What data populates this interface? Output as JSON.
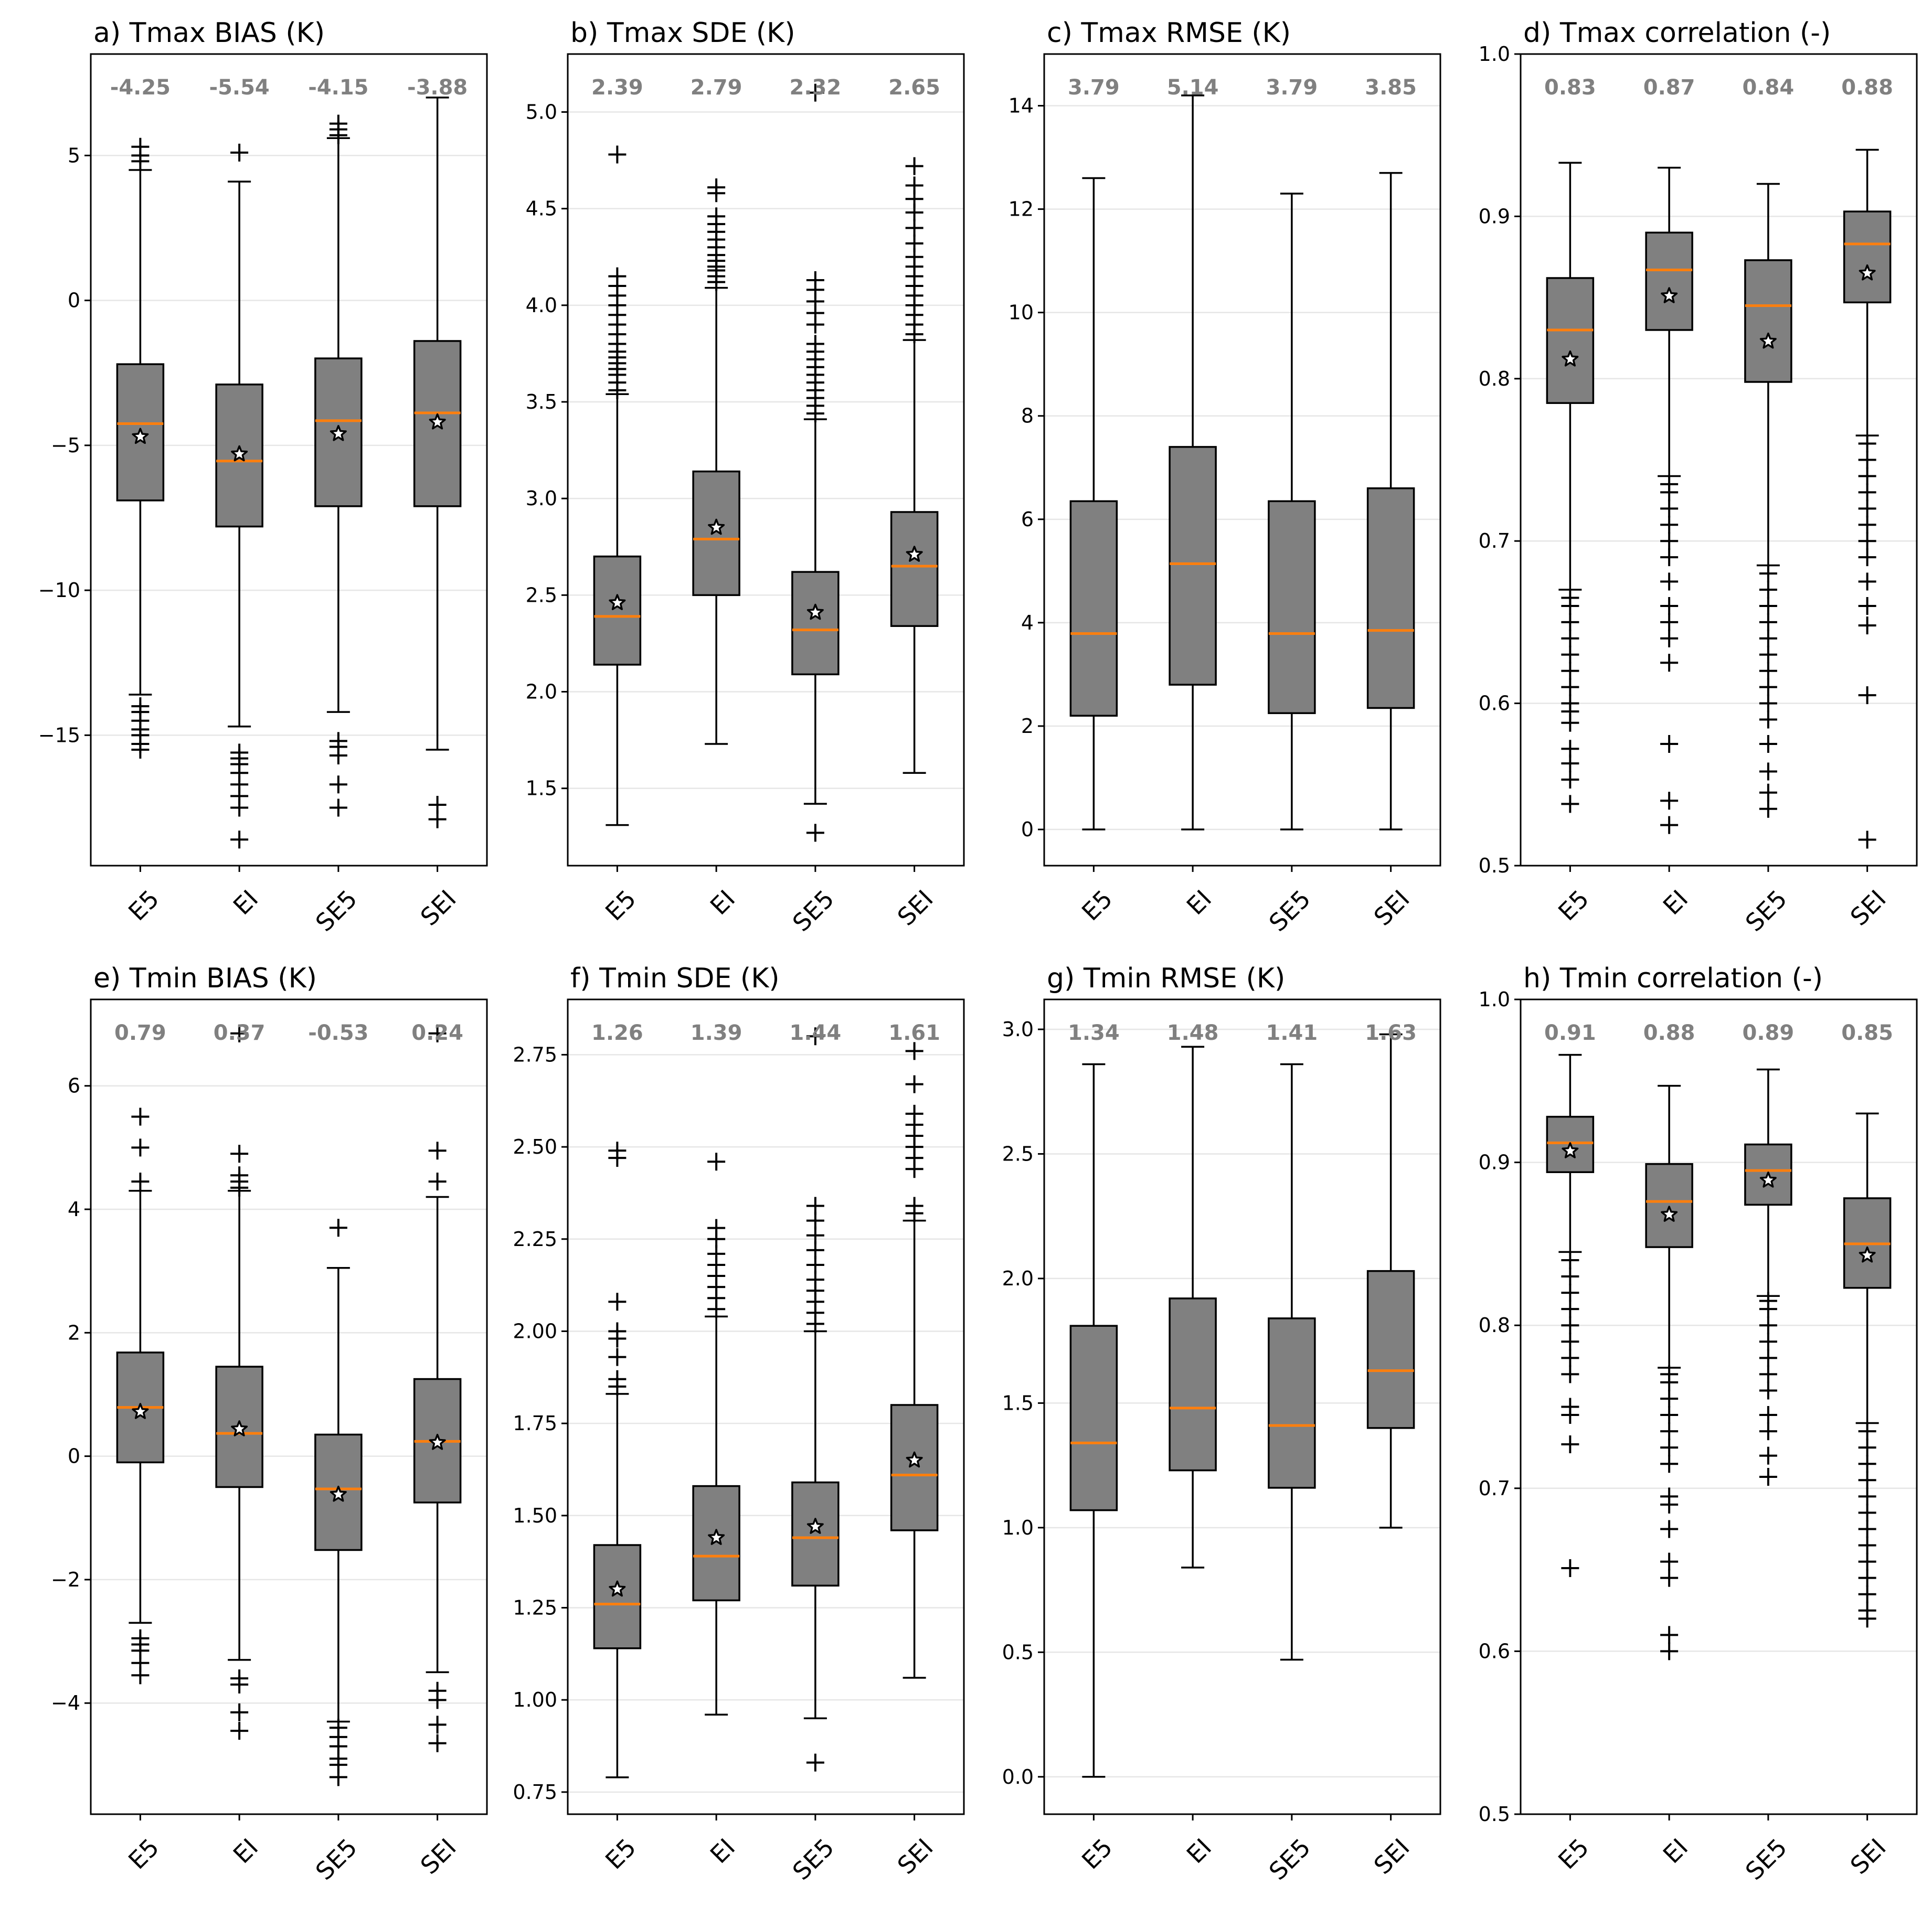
{
  "colors": {
    "box_fill": "#808080",
    "median_line": "#ff7f0e",
    "median_label": "#808080",
    "grid": "#e6e6e6",
    "axis": "#000000",
    "mean_marker_fill": "#ffffff"
  },
  "chart_data": [
    {
      "id": "a",
      "type": "boxplot",
      "title": "a) Tmax BIAS (K)",
      "categories": [
        "E5",
        "EI",
        "SE5",
        "SEI"
      ],
      "ylim": [
        -19.5,
        8.5
      ],
      "yticks": [
        -15,
        -10,
        -5,
        0,
        5
      ],
      "ytick_labels": [
        "−15",
        "−10",
        "−5",
        "0",
        "5"
      ],
      "median_labels": [
        "-4.25",
        "-5.54",
        "-4.15",
        "-3.88"
      ],
      "boxes": [
        {
          "q1": -6.9,
          "median": -4.25,
          "q3": -2.2,
          "whislo": -13.6,
          "whishi": 4.5,
          "mean": -4.7,
          "fliers": [
            -14.0,
            -14.2,
            -14.5,
            -14.8,
            -15.0,
            -15.3,
            -15.5,
            4.8,
            5.0,
            5.3
          ]
        },
        {
          "q1": -7.8,
          "median": -5.54,
          "q3": -2.9,
          "whislo": -14.7,
          "whishi": 4.1,
          "mean": -5.3,
          "fliers": [
            -15.6,
            -15.8,
            -16.0,
            -16.3,
            -16.7,
            -17.1,
            -17.5,
            -18.6,
            5.1
          ]
        },
        {
          "q1": -7.1,
          "median": -4.15,
          "q3": -2.0,
          "whislo": -14.2,
          "whishi": 5.6,
          "mean": -4.6,
          "fliers": [
            -15.2,
            -15.4,
            -15.7,
            -16.7,
            -17.5,
            5.7,
            5.9,
            6.1
          ]
        },
        {
          "q1": -7.1,
          "median": -3.88,
          "q3": -1.4,
          "whislo": -15.5,
          "whishi": 7.0,
          "mean": -4.2,
          "fliers": [
            -17.4,
            -17.9
          ]
        }
      ]
    },
    {
      "id": "b",
      "type": "boxplot",
      "title": "b) Tmax SDE (K)",
      "categories": [
        "E5",
        "EI",
        "SE5",
        "SEI"
      ],
      "ylim": [
        1.1,
        5.3
      ],
      "yticks": [
        1.5,
        2.0,
        2.5,
        3.0,
        3.5,
        4.0,
        4.5,
        5.0
      ],
      "ytick_labels": [
        "1.5",
        "2.0",
        "2.5",
        "3.0",
        "3.5",
        "4.0",
        "4.5",
        "5.0"
      ],
      "median_labels": [
        "2.39",
        "2.79",
        "2.32",
        "2.65"
      ],
      "boxes": [
        {
          "q1": 2.14,
          "median": 2.39,
          "q3": 2.7,
          "whislo": 1.31,
          "whishi": 3.54,
          "mean": 2.46,
          "fliers": [
            3.56,
            3.6,
            3.64,
            3.67,
            3.7,
            3.73,
            3.76,
            3.8,
            3.85,
            3.9,
            3.95,
            4.0,
            4.05,
            4.1,
            4.15,
            4.78
          ]
        },
        {
          "q1": 2.5,
          "median": 2.79,
          "q3": 3.14,
          "whislo": 1.73,
          "whishi": 4.09,
          "mean": 2.85,
          "fliers": [
            4.12,
            4.15,
            4.18,
            4.2,
            4.23,
            4.26,
            4.3,
            4.34,
            4.38,
            4.42,
            4.46,
            4.58,
            4.61
          ]
        },
        {
          "q1": 2.09,
          "median": 2.32,
          "q3": 2.62,
          "whislo": 1.42,
          "whishi": 3.41,
          "mean": 2.41,
          "fliers": [
            1.27,
            3.44,
            3.48,
            3.52,
            3.56,
            3.6,
            3.64,
            3.68,
            3.72,
            3.76,
            3.8,
            3.9,
            3.96,
            4.02,
            4.08,
            4.13,
            5.1
          ]
        },
        {
          "q1": 2.34,
          "median": 2.65,
          "q3": 2.93,
          "whislo": 1.58,
          "whishi": 3.82,
          "mean": 2.71,
          "fliers": [
            3.85,
            3.9,
            3.95,
            4.0,
            4.05,
            4.1,
            4.15,
            4.2,
            4.25,
            4.32,
            4.4,
            4.48,
            4.55,
            4.62,
            4.72
          ]
        }
      ]
    },
    {
      "id": "c",
      "type": "boxplot",
      "title": "c) Tmax RMSE (K)",
      "categories": [
        "E5",
        "EI",
        "SE5",
        "SEI"
      ],
      "ylim": [
        -0.7,
        15.0
      ],
      "yticks": [
        0,
        2,
        4,
        6,
        8,
        10,
        12,
        14
      ],
      "ytick_labels": [
        "0",
        "2",
        "4",
        "6",
        "8",
        "10",
        "12",
        "14"
      ],
      "median_labels": [
        "3.79",
        "5.14",
        "3.79",
        "3.85"
      ],
      "boxes": [
        {
          "q1": 2.2,
          "median": 3.79,
          "q3": 6.35,
          "whislo": 0.0,
          "whishi": 12.6,
          "mean": null,
          "fliers": []
        },
        {
          "q1": 2.8,
          "median": 5.14,
          "q3": 7.4,
          "whislo": 0.0,
          "whishi": 14.2,
          "mean": null,
          "fliers": []
        },
        {
          "q1": 2.25,
          "median": 3.79,
          "q3": 6.35,
          "whislo": 0.0,
          "whishi": 12.3,
          "mean": null,
          "fliers": []
        },
        {
          "q1": 2.35,
          "median": 3.85,
          "q3": 6.6,
          "whislo": 0.0,
          "whishi": 12.7,
          "mean": null,
          "fliers": []
        }
      ]
    },
    {
      "id": "d",
      "type": "boxplot",
      "title": "d) Tmax correlation (-)",
      "categories": [
        "E5",
        "EI",
        "SE5",
        "SEI"
      ],
      "ylim": [
        0.5,
        1.0
      ],
      "yticks": [
        0.5,
        0.6,
        0.7,
        0.8,
        0.9,
        1.0
      ],
      "ytick_labels": [
        "0.5",
        "0.6",
        "0.7",
        "0.8",
        "0.9",
        "1.0"
      ],
      "median_labels": [
        "0.83",
        "0.87",
        "0.84",
        "0.88"
      ],
      "boxes": [
        {
          "q1": 0.785,
          "median": 0.83,
          "q3": 0.862,
          "whislo": 0.67,
          "whishi": 0.933,
          "mean": 0.812,
          "fliers": [
            0.538,
            0.553,
            0.563,
            0.572,
            0.588,
            0.595,
            0.6,
            0.61,
            0.62,
            0.63,
            0.64,
            0.65,
            0.66,
            0.665
          ]
        },
        {
          "q1": 0.83,
          "median": 0.867,
          "q3": 0.89,
          "whislo": 0.74,
          "whishi": 0.93,
          "mean": 0.851,
          "fliers": [
            0.525,
            0.54,
            0.575,
            0.625,
            0.64,
            0.65,
            0.66,
            0.675,
            0.69,
            0.7,
            0.71,
            0.72,
            0.73,
            0.735
          ]
        },
        {
          "q1": 0.798,
          "median": 0.845,
          "q3": 0.873,
          "whislo": 0.685,
          "whishi": 0.92,
          "mean": 0.823,
          "fliers": [
            0.535,
            0.545,
            0.558,
            0.575,
            0.59,
            0.6,
            0.61,
            0.62,
            0.63,
            0.64,
            0.65,
            0.66,
            0.67,
            0.68
          ]
        },
        {
          "q1": 0.847,
          "median": 0.883,
          "q3": 0.903,
          "whislo": 0.765,
          "whishi": 0.941,
          "mean": 0.865,
          "fliers": [
            0.516,
            0.605,
            0.648,
            0.66,
            0.675,
            0.69,
            0.7,
            0.71,
            0.72,
            0.73,
            0.74,
            0.75,
            0.76
          ]
        }
      ]
    },
    {
      "id": "e",
      "type": "boxplot",
      "title": "e) Tmin BIAS (K)",
      "categories": [
        "E5",
        "EI",
        "SE5",
        "SEI"
      ],
      "ylim": [
        -5.8,
        7.4
      ],
      "yticks": [
        -4,
        -2,
        0,
        2,
        4,
        6
      ],
      "ytick_labels": [
        "−4",
        "−2",
        "0",
        "2",
        "4",
        "6"
      ],
      "median_labels": [
        "0.79",
        "0.37",
        "-0.53",
        "0.24"
      ],
      "boxes": [
        {
          "q1": -0.1,
          "median": 0.79,
          "q3": 1.68,
          "whislo": -2.7,
          "whishi": 4.3,
          "mean": 0.72,
          "fliers": [
            -2.95,
            -3.05,
            -3.15,
            -3.35,
            -3.55,
            4.45,
            5.0,
            5.5
          ]
        },
        {
          "q1": -0.5,
          "median": 0.37,
          "q3": 1.45,
          "whislo": -3.3,
          "whishi": 4.3,
          "mean": 0.44,
          "fliers": [
            -3.6,
            -3.7,
            -4.15,
            -4.45,
            4.35,
            4.45,
            4.55,
            4.9,
            6.85
          ]
        },
        {
          "q1": -1.52,
          "median": -0.53,
          "q3": 0.35,
          "whislo": -4.3,
          "whishi": 3.05,
          "mean": -0.62,
          "fliers": [
            -4.4,
            -4.55,
            -4.7,
            -4.9,
            -5.0,
            -5.2,
            3.7
          ]
        },
        {
          "q1": -0.75,
          "median": 0.24,
          "q3": 1.25,
          "whislo": -3.5,
          "whishi": 4.2,
          "mean": 0.22,
          "fliers": [
            -3.8,
            -3.95,
            -4.35,
            -4.65,
            4.45,
            4.95,
            6.85
          ]
        }
      ]
    },
    {
      "id": "f",
      "type": "boxplot",
      "title": "f) Tmin SDE (K)",
      "categories": [
        "E5",
        "EI",
        "SE5",
        "SEI"
      ],
      "ylim": [
        0.69,
        2.9
      ],
      "yticks": [
        0.75,
        1.0,
        1.25,
        1.5,
        1.75,
        2.0,
        2.25,
        2.5,
        2.75
      ],
      "ytick_labels": [
        "0.75",
        "1.00",
        "1.25",
        "1.50",
        "1.75",
        "2.00",
        "2.25",
        "2.50",
        "2.75"
      ],
      "median_labels": [
        "1.26",
        "1.39",
        "1.44",
        "1.61"
      ],
      "boxes": [
        {
          "q1": 1.14,
          "median": 1.26,
          "q3": 1.42,
          "whislo": 0.79,
          "whishi": 1.83,
          "mean": 1.3,
          "fliers": [
            1.85,
            1.87,
            1.93,
            1.98,
            2.0,
            2.08,
            2.47,
            2.49
          ]
        },
        {
          "q1": 1.27,
          "median": 1.39,
          "q3": 1.58,
          "whislo": 0.96,
          "whishi": 2.04,
          "mean": 1.44,
          "fliers": [
            2.06,
            2.09,
            2.12,
            2.15,
            2.18,
            2.21,
            2.25,
            2.28,
            2.46
          ]
        },
        {
          "q1": 1.31,
          "median": 1.44,
          "q3": 1.59,
          "whislo": 0.95,
          "whishi": 2.0,
          "mean": 1.47,
          "fliers": [
            0.83,
            2.02,
            2.05,
            2.08,
            2.11,
            2.14,
            2.18,
            2.22,
            2.26,
            2.3,
            2.34,
            2.8
          ]
        },
        {
          "q1": 1.46,
          "median": 1.61,
          "q3": 1.8,
          "whislo": 1.06,
          "whishi": 2.3,
          "mean": 1.65,
          "fliers": [
            2.32,
            2.34,
            2.44,
            2.47,
            2.5,
            2.53,
            2.56,
            2.59,
            2.67,
            2.76
          ]
        }
      ]
    },
    {
      "id": "g",
      "type": "boxplot",
      "title": "g) Tmin RMSE (K)",
      "categories": [
        "E5",
        "EI",
        "SE5",
        "SEI"
      ],
      "ylim": [
        -0.15,
        3.12
      ],
      "yticks": [
        0.0,
        0.5,
        1.0,
        1.5,
        2.0,
        2.5,
        3.0
      ],
      "ytick_labels": [
        "0.0",
        "0.5",
        "1.0",
        "1.5",
        "2.0",
        "2.5",
        "3.0"
      ],
      "median_labels": [
        "1.34",
        "1.48",
        "1.41",
        "1.63"
      ],
      "boxes": [
        {
          "q1": 1.07,
          "median": 1.34,
          "q3": 1.81,
          "whislo": 0.0,
          "whishi": 2.86,
          "mean": null,
          "fliers": []
        },
        {
          "q1": 1.23,
          "median": 1.48,
          "q3": 1.92,
          "whislo": 0.84,
          "whishi": 2.93,
          "mean": null,
          "fliers": []
        },
        {
          "q1": 1.16,
          "median": 1.41,
          "q3": 1.84,
          "whislo": 0.47,
          "whishi": 2.86,
          "mean": null,
          "fliers": []
        },
        {
          "q1": 1.4,
          "median": 1.63,
          "q3": 2.03,
          "whislo": 1.0,
          "whishi": 2.98,
          "mean": null,
          "fliers": []
        }
      ]
    },
    {
      "id": "h",
      "type": "boxplot",
      "title": "h) Tmin correlation (-)",
      "categories": [
        "E5",
        "EI",
        "SE5",
        "SEI"
      ],
      "ylim": [
        0.5,
        1.0
      ],
      "yticks": [
        0.5,
        0.6,
        0.7,
        0.8,
        0.9,
        1.0
      ],
      "ytick_labels": [
        "0.5",
        "0.6",
        "0.7",
        "0.8",
        "0.9",
        "1.0"
      ],
      "median_labels": [
        "0.91",
        "0.88",
        "0.89",
        "0.85"
      ],
      "boxes": [
        {
          "q1": 0.894,
          "median": 0.912,
          "q3": 0.928,
          "whislo": 0.845,
          "whishi": 0.966,
          "mean": 0.907,
          "fliers": [
            0.651,
            0.727,
            0.745,
            0.75,
            0.77,
            0.78,
            0.79,
            0.8,
            0.81,
            0.82,
            0.83,
            0.84
          ]
        },
        {
          "q1": 0.848,
          "median": 0.876,
          "q3": 0.899,
          "whislo": 0.774,
          "whishi": 0.947,
          "mean": 0.868,
          "fliers": [
            0.6,
            0.61,
            0.645,
            0.655,
            0.675,
            0.69,
            0.695,
            0.715,
            0.725,
            0.735,
            0.745,
            0.755,
            0.765,
            0.77
          ]
        },
        {
          "q1": 0.874,
          "median": 0.895,
          "q3": 0.911,
          "whislo": 0.818,
          "whishi": 0.957,
          "mean": 0.889,
          "fliers": [
            0.707,
            0.72,
            0.735,
            0.745,
            0.76,
            0.77,
            0.78,
            0.79,
            0.8,
            0.81,
            0.815
          ]
        },
        {
          "q1": 0.823,
          "median": 0.85,
          "q3": 0.878,
          "whislo": 0.74,
          "whishi": 0.93,
          "mean": 0.843,
          "fliers": [
            0.62,
            0.625,
            0.635,
            0.645,
            0.655,
            0.665,
            0.675,
            0.685,
            0.695,
            0.705,
            0.715,
            0.725,
            0.735
          ]
        }
      ]
    }
  ]
}
